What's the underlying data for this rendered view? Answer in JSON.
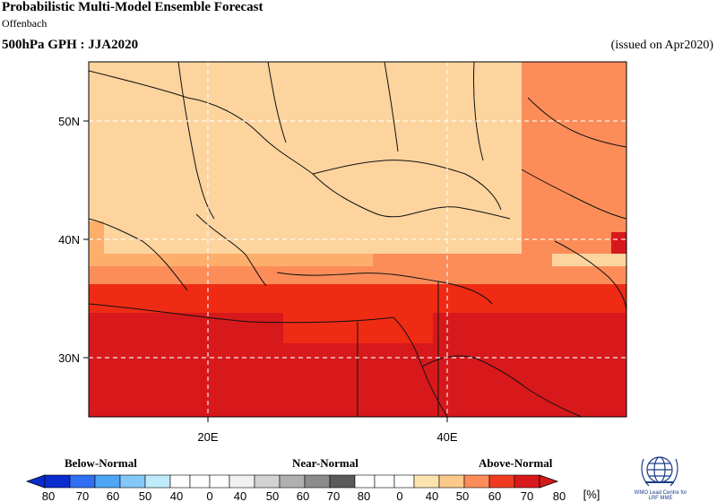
{
  "header": {
    "title": "Probabilistic Multi-Model Ensemble Forecast",
    "subtitle": "Offenbach",
    "variable": "500hPa GPH : JJA2020",
    "issued": "(issued on Apr2020)"
  },
  "map": {
    "region": "Eastern Mediterranean / Black Sea",
    "lon_range": [
      10,
      55
    ],
    "lat_range": [
      25,
      55
    ],
    "x_ticks": [
      {
        "value": 20,
        "label": "20E"
      },
      {
        "value": 40,
        "label": "40E"
      }
    ],
    "y_ticks": [
      {
        "value": 30,
        "label": "30N"
      },
      {
        "value": 40,
        "label": "40N"
      },
      {
        "value": 50,
        "label": "50N"
      }
    ],
    "gridlines": true,
    "colors": {
      "above_40_50": "#fdd49e",
      "above_50_60": "#fdae6b",
      "above_60_70": "#fc8d59",
      "above_70_80": "#ef2b14",
      "above_80": "#d7191c",
      "coast": "#111111",
      "grid": "#ffffff"
    }
  },
  "legend": {
    "categories": [
      "Below-Normal",
      "Near-Normal",
      "Above-Normal"
    ],
    "unit": "[%]",
    "tick_labels": [
      "80",
      "70",
      "60",
      "50",
      "40",
      "0",
      "40",
      "50",
      "60",
      "70",
      "80",
      "0",
      "40",
      "50",
      "60",
      "70",
      "80"
    ],
    "below_colors": [
      "#0a2ccf",
      "#2f6ff2",
      "#4ea6f5",
      "#84c8f9",
      "#bfeafc"
    ],
    "near_colors": [
      "#f0f0f0",
      "#d2d2d2",
      "#b0b0b0",
      "#8c8c8c",
      "#5a5a5a"
    ],
    "above_colors": [
      "#fde3b0",
      "#fcc98a",
      "#fc8d59",
      "#f03b20",
      "#d7191c"
    ]
  },
  "logo": {
    "icon": "wmo-emblem-icon",
    "lines": [
      "WMO Lead Centre for",
      "LRF MME"
    ]
  }
}
